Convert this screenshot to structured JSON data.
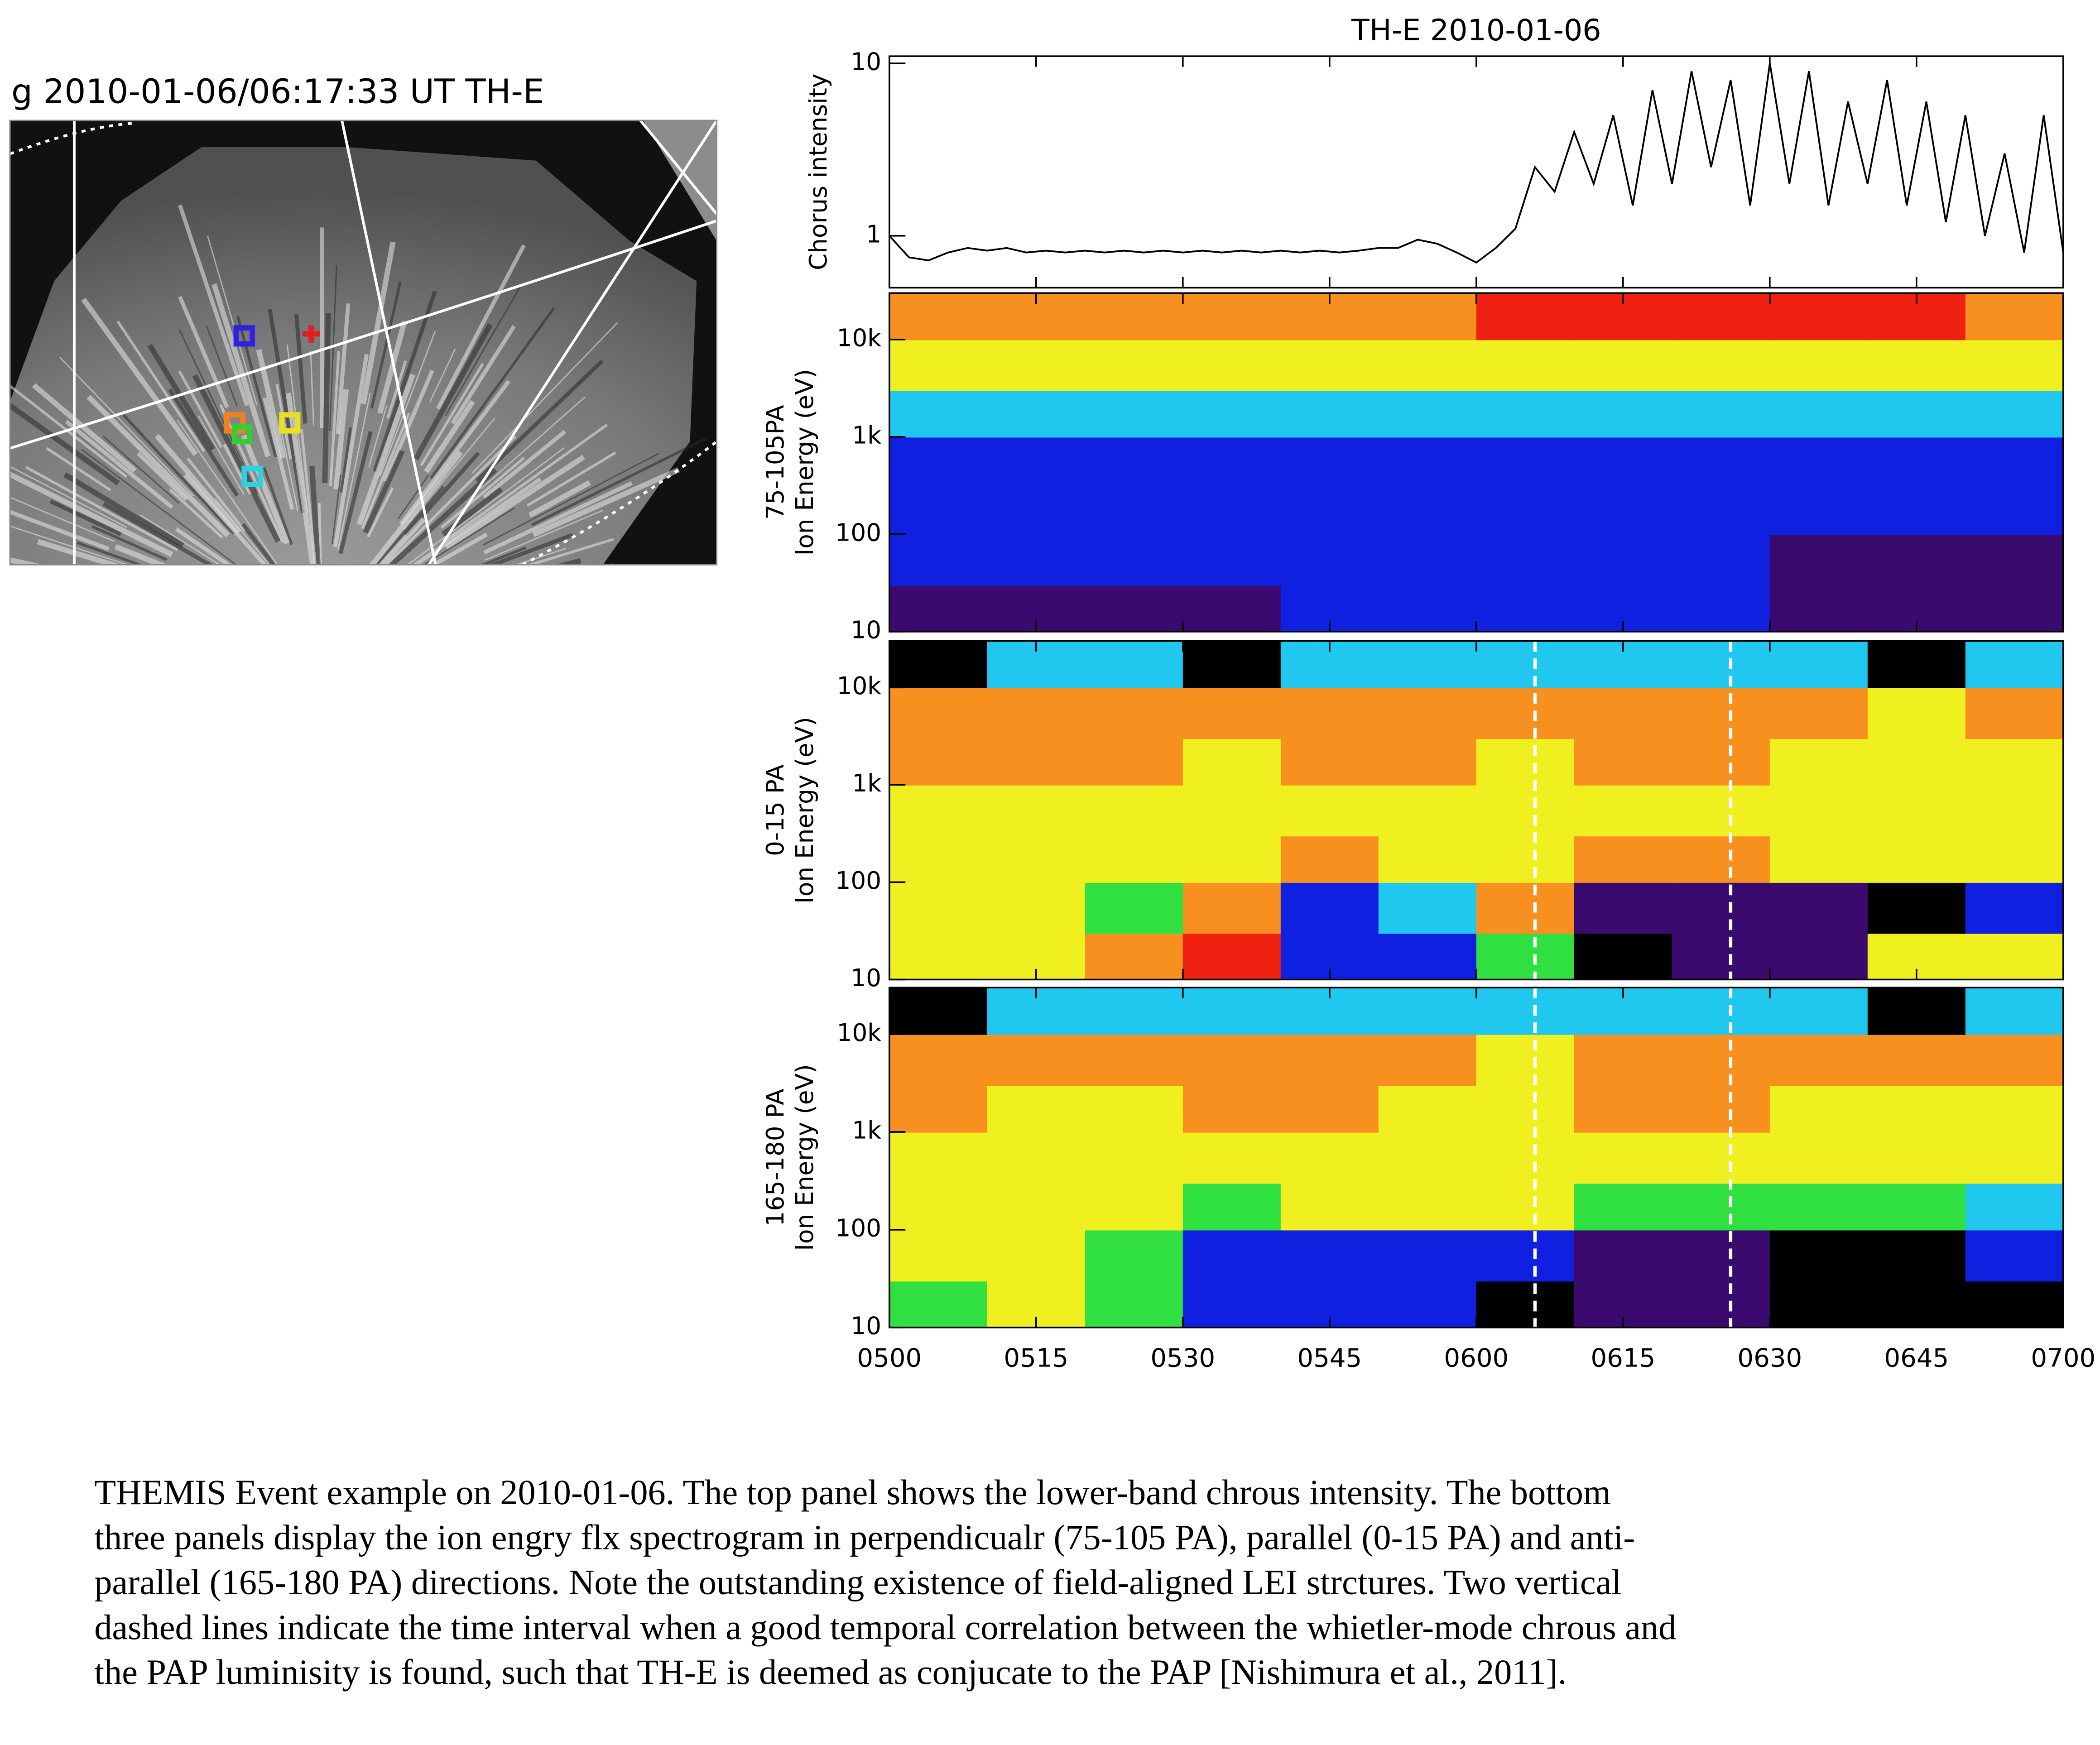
{
  "image_title": "g 2010-01-06/06:17:33 UT  TH-E",
  "chart_data": [
    {
      "type": "line",
      "title": "TH-E 2010-01-06",
      "ylabel": "Chorus intensity",
      "log": true,
      "color": "#000000",
      "xlim": [
        300,
        420
      ],
      "ylim": [
        0.5,
        11
      ],
      "yticks": [
        1,
        10
      ],
      "x": [
        300,
        302,
        304,
        306,
        308,
        310,
        312,
        314,
        316,
        318,
        320,
        322,
        324,
        326,
        328,
        330,
        332,
        334,
        336,
        338,
        340,
        342,
        344,
        346,
        348,
        350,
        352,
        354,
        356,
        358,
        360,
        362,
        364,
        366,
        368,
        370,
        372,
        374,
        376,
        378,
        380,
        382,
        384,
        386,
        388,
        390,
        392,
        394,
        396,
        398,
        400,
        402,
        404,
        406,
        408,
        410,
        412,
        414,
        416,
        418,
        420
      ],
      "values": [
        1.0,
        0.75,
        0.72,
        0.8,
        0.85,
        0.82,
        0.85,
        0.8,
        0.82,
        0.8,
        0.82,
        0.8,
        0.82,
        0.8,
        0.82,
        0.8,
        0.82,
        0.8,
        0.82,
        0.8,
        0.82,
        0.8,
        0.82,
        0.8,
        0.82,
        0.85,
        0.85,
        0.95,
        0.9,
        0.8,
        0.7,
        0.85,
        1.1,
        2.5,
        1.8,
        4,
        2,
        5,
        1.5,
        7,
        2,
        9,
        2.5,
        8,
        1.5,
        10,
        2,
        9,
        1.5,
        6,
        2,
        8,
        1.5,
        6,
        1.2,
        5,
        1,
        3,
        0.8,
        5,
        0.8
      ]
    },
    {
      "type": "heatmap",
      "ylabel": [
        "75-105PA",
        "Ion Energy (eV)"
      ],
      "log": true,
      "xlim": [
        300,
        420
      ],
      "ylim": [
        10,
        30000
      ],
      "yticks": [
        10,
        100,
        {
          "value": 1000,
          "label": "1k"
        },
        {
          "value": 10000,
          "label": "10k"
        }
      ],
      "colors": [
        "#000000",
        "#3a0a6e",
        "#1020e0",
        "#20c8f0",
        "#30e040",
        "#f0f020",
        "#f89020",
        "#f02010"
      ],
      "x_edges": [
        300,
        310,
        320,
        330,
        340,
        350,
        360,
        370,
        380,
        390,
        400,
        410,
        420
      ],
      "energy_edges": [
        10,
        30,
        100,
        300,
        1000,
        3000,
        10000,
        30000
      ],
      "values": [
        [
          1,
          1,
          1,
          1,
          2,
          2,
          2,
          2,
          2,
          1,
          1,
          1
        ],
        [
          2,
          2,
          2,
          2,
          2,
          2,
          2,
          2,
          2,
          1,
          1,
          1
        ],
        [
          2,
          2,
          2,
          2,
          2,
          2,
          2,
          2,
          2,
          2,
          2,
          2
        ],
        [
          2,
          2,
          2,
          2,
          2,
          2,
          2,
          2,
          2,
          2,
          2,
          2
        ],
        [
          3,
          3,
          3,
          3,
          3,
          3,
          3,
          3,
          3,
          3,
          3,
          3
        ],
        [
          5,
          5,
          5,
          5,
          5,
          5,
          5,
          5,
          5,
          5,
          5,
          5
        ],
        [
          6,
          6,
          6,
          6,
          6,
          6,
          7,
          7,
          7,
          7,
          7,
          6
        ]
      ]
    },
    {
      "type": "heatmap",
      "ylabel": [
        "0-15 PA",
        "Ion Energy (eV)"
      ],
      "log": true,
      "xlim": [
        300,
        420
      ],
      "ylim": [
        10,
        30000
      ],
      "yticks": [
        10,
        100,
        {
          "value": 1000,
          "label": "1k"
        },
        {
          "value": 10000,
          "label": "10k"
        }
      ],
      "colors": [
        "#000000",
        "#3a0a6e",
        "#1020e0",
        "#20c8f0",
        "#30e040",
        "#f0f020",
        "#f89020",
        "#f02010"
      ],
      "x_edges": [
        300,
        310,
        320,
        330,
        340,
        350,
        360,
        370,
        380,
        390,
        400,
        410,
        420
      ],
      "energy_edges": [
        10,
        30,
        100,
        300,
        1000,
        3000,
        10000,
        30000
      ],
      "values": [
        [
          5,
          5,
          6,
          7,
          2,
          2,
          4,
          0,
          1,
          1,
          5,
          5
        ],
        [
          5,
          5,
          4,
          6,
          2,
          3,
          6,
          1,
          1,
          1,
          0,
          2
        ],
        [
          5,
          5,
          5,
          5,
          6,
          5,
          5,
          6,
          6,
          5,
          5,
          5
        ],
        [
          5,
          5,
          5,
          5,
          5,
          5,
          5,
          5,
          5,
          5,
          5,
          5
        ],
        [
          6,
          6,
          6,
          5,
          6,
          6,
          5,
          6,
          6,
          5,
          5,
          5
        ],
        [
          6,
          6,
          6,
          6,
          6,
          6,
          6,
          6,
          6,
          6,
          5,
          6
        ],
        [
          0,
          3,
          3,
          0,
          3,
          3,
          3,
          3,
          3,
          3,
          0,
          3
        ]
      ],
      "markers_x": [
        366,
        386
      ]
    },
    {
      "type": "heatmap",
      "ylabel": [
        "165-180 PA",
        "Ion Energy (eV)"
      ],
      "log": true,
      "xlim": [
        300,
        420
      ],
      "ylim": [
        10,
        30000
      ],
      "yticks": [
        10,
        100,
        {
          "value": 1000,
          "label": "1k"
        },
        {
          "value": 10000,
          "label": "10k"
        }
      ],
      "colors": [
        "#000000",
        "#3a0a6e",
        "#1020e0",
        "#20c8f0",
        "#30e040",
        "#f0f020",
        "#f89020",
        "#f02010"
      ],
      "x_edges": [
        300,
        310,
        320,
        330,
        340,
        350,
        360,
        370,
        380,
        390,
        400,
        410,
        420
      ],
      "energy_edges": [
        10,
        30,
        100,
        300,
        1000,
        3000,
        10000,
        30000
      ],
      "values": [
        [
          4,
          5,
          4,
          2,
          2,
          2,
          0,
          1,
          1,
          0,
          0,
          0
        ],
        [
          5,
          5,
          4,
          2,
          2,
          2,
          2,
          1,
          1,
          0,
          0,
          2
        ],
        [
          5,
          5,
          5,
          4,
          5,
          5,
          5,
          4,
          4,
          4,
          4,
          3
        ],
        [
          5,
          5,
          5,
          5,
          5,
          5,
          5,
          5,
          5,
          5,
          5,
          5
        ],
        [
          6,
          5,
          5,
          6,
          6,
          5,
          5,
          6,
          6,
          5,
          5,
          5
        ],
        [
          6,
          6,
          6,
          6,
          6,
          6,
          5,
          6,
          6,
          6,
          6,
          6
        ],
        [
          0,
          3,
          3,
          3,
          3,
          3,
          3,
          3,
          3,
          3,
          0,
          3
        ]
      ],
      "markers_x": [
        366,
        386
      ],
      "xticks": [
        {
          "value": 300,
          "label": "0500"
        },
        {
          "value": 315,
          "label": "0515"
        },
        {
          "value": 330,
          "label": "0530"
        },
        {
          "value": 345,
          "label": "0545"
        },
        {
          "value": 360,
          "label": "0600"
        },
        {
          "value": 375,
          "label": "0615"
        },
        {
          "value": 390,
          "label": "0630"
        },
        {
          "value": 405,
          "label": "0645"
        },
        {
          "value": 420,
          "label": "0700"
        }
      ]
    }
  ],
  "caption": [
    "THEMIS Event example on 2010-01-06. The top panel shows the lower-band  chrous intensity. The bottom",
    "three panels display the ion engry flx spectrogram in perpendicualr (75-105 PA), parallel (0-15 PA) and anti-",
    "parallel (165-180 PA) directions. Note the outstanding existence of field-aligned LEI strctures. Two vertical",
    "dashed lines indicate the time interval when a good temporal correlation between the whietler-mode chrous and",
    "the PAP luminisity is found,  such that TH-E is deemed as conjucate to the PAP [Nishimura et al., 2011]."
  ]
}
